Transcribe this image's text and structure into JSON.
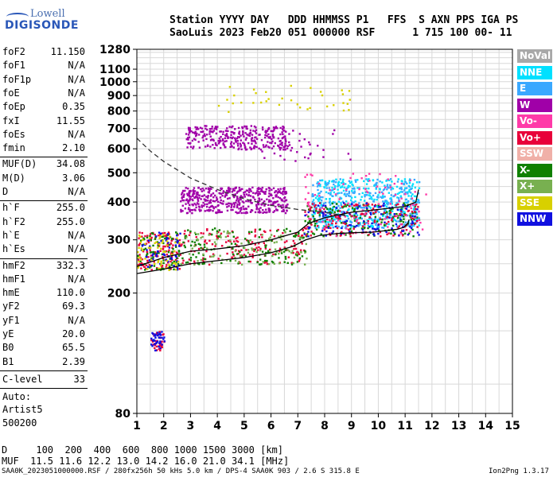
{
  "logo": {
    "line1": "Lowell",
    "line2": "DIGISONDE"
  },
  "header": {
    "row1": "Station YYYY DAY   DDD HHMMSS P1   FFS  S AXN PPS IGA PS",
    "row2": "SaoLuis 2023 Feb20 051 000000 RSF      1 715 100 00- 11"
  },
  "params": [
    {
      "name": "foF2",
      "value": "11.150"
    },
    {
      "name": "foF1",
      "value": "N/A"
    },
    {
      "name": "foF1p",
      "value": "N/A"
    },
    {
      "name": "foE",
      "value": "N/A"
    },
    {
      "name": "foEp",
      "value": "0.35"
    },
    {
      "name": "fxI",
      "value": "11.55"
    },
    {
      "name": "foEs",
      "value": "N/A"
    },
    {
      "name": "fmin",
      "value": "2.10"
    },
    {
      "name": "MUF(D)",
      "value": "34.08"
    },
    {
      "name": "M(D)",
      "value": "3.06"
    },
    {
      "name": "D",
      "value": "N/A"
    },
    {
      "name": "h`F",
      "value": "255.0"
    },
    {
      "name": "h`F2",
      "value": "255.0"
    },
    {
      "name": "h`E",
      "value": "N/A"
    },
    {
      "name": "h`Es",
      "value": "N/A"
    },
    {
      "name": "hmF2",
      "value": "332.3"
    },
    {
      "name": "hmF1",
      "value": "N/A"
    },
    {
      "name": "hmE",
      "value": "110.0"
    },
    {
      "name": "yF2",
      "value": "69.3"
    },
    {
      "name": "yF1",
      "value": "N/A"
    },
    {
      "name": "yE",
      "value": "20.0"
    },
    {
      "name": "B0",
      "value": "65.5"
    },
    {
      "name": "B1",
      "value": "2.39"
    }
  ],
  "c_level": {
    "name": "C-level",
    "value": "33"
  },
  "auto": {
    "line1": "Auto:",
    "line2": "Artist5",
    "line3": "500200"
  },
  "legend": [
    {
      "label": "NoVal",
      "color": "#a8a8a8"
    },
    {
      "label": "NNE",
      "color": "#00e0ff"
    },
    {
      "label": "E",
      "color": "#3aa8ff"
    },
    {
      "label": "W",
      "color": "#a000a8"
    },
    {
      "label": "Vo-",
      "color": "#ff3aa8"
    },
    {
      "label": "Vo+",
      "color": "#e8003a"
    },
    {
      "label": "SSW",
      "color": "#f0b0a8"
    },
    {
      "label": "X-",
      "color": "#108000"
    },
    {
      "label": "X+",
      "color": "#78b050"
    },
    {
      "label": "SSE",
      "color": "#d8d000"
    },
    {
      "label": "NNW",
      "color": "#1010e0"
    }
  ],
  "bottom": {
    "row1": "D     100  200  400  600  800 1000 1500 3000 [km]",
    "row2": "MUF  11.5 11.6 12.2 13.0 14.2 16.0 21.0 34.1 [MHz]"
  },
  "footer": {
    "left": "SAA0K_2023051000000.RSF / 280fx256h 50 kHs 5.0 km / DPS-4 SAA0K 903 / 2.6 S 315.8 E",
    "right": "Ion2Png 1.3.17"
  },
  "chart_data": {
    "type": "scatter",
    "title": "",
    "xlabel": "",
    "ylabel": "",
    "xlim": [
      1,
      15
    ],
    "ylim": [
      80,
      1280
    ],
    "y_scale": "log",
    "x_ticks": [
      1,
      2,
      3,
      4,
      5,
      6,
      7,
      8,
      9,
      10,
      11,
      12,
      13,
      14,
      15
    ],
    "y_ticks": [
      80,
      200,
      300,
      400,
      500,
      600,
      700,
      800,
      900,
      1000,
      1100,
      1280
    ],
    "grid": true,
    "clusters": [
      {
        "name": "Vo+",
        "color": "#e8003a",
        "x": [
          1.5,
          2.0
        ],
        "y": [
          130,
          150
        ],
        "n": 40
      },
      {
        "name": "NNW",
        "color": "#1010e0",
        "x": [
          1.5,
          2.0
        ],
        "y": [
          130,
          150
        ],
        "n": 40
      },
      {
        "name": "Vo+",
        "color": "#e8003a",
        "x": [
          1.0,
          2.6
        ],
        "y": [
          240,
          320
        ],
        "n": 120
      },
      {
        "name": "X-",
        "color": "#108000",
        "x": [
          1.0,
          2.6
        ],
        "y": [
          240,
          320
        ],
        "n": 80
      },
      {
        "name": "NNW",
        "color": "#1010e0",
        "x": [
          1.0,
          2.6
        ],
        "y": [
          240,
          320
        ],
        "n": 60
      },
      {
        "name": "SSE",
        "color": "#d8d000",
        "x": [
          1.0,
          2.6
        ],
        "y": [
          240,
          320
        ],
        "n": 60
      },
      {
        "name": "Vo+",
        "color": "#e8003a",
        "x": [
          2.6,
          7.3
        ],
        "y": [
          250,
          330
        ],
        "n": 160
      },
      {
        "name": "X-",
        "color": "#108000",
        "x": [
          2.6,
          7.3
        ],
        "y": [
          250,
          330
        ],
        "n": 120
      },
      {
        "name": "X+",
        "color": "#78b050",
        "x": [
          2.6,
          7.3
        ],
        "y": [
          250,
          330
        ],
        "n": 100
      },
      {
        "name": "W",
        "color": "#a000a8",
        "x": [
          2.6,
          6.6
        ],
        "y": [
          370,
          450
        ],
        "n": 450
      },
      {
        "name": "W",
        "color": "#a000a8",
        "x": [
          2.8,
          6.6
        ],
        "y": [
          600,
          720
        ],
        "n": 300
      },
      {
        "name": "NNE",
        "color": "#00e0ff",
        "x": [
          7.5,
          11.5
        ],
        "y": [
          330,
          480
        ],
        "n": 350
      },
      {
        "name": "E",
        "color": "#3aa8ff",
        "x": [
          7.5,
          11.5
        ],
        "y": [
          330,
          480
        ],
        "n": 300
      },
      {
        "name": "X-",
        "color": "#108000",
        "x": [
          7.2,
          11.5
        ],
        "y": [
          310,
          400
        ],
        "n": 160
      },
      {
        "name": "Vo+",
        "color": "#e8003a",
        "x": [
          7.2,
          11.5
        ],
        "y": [
          310,
          400
        ],
        "n": 150
      },
      {
        "name": "Vo-",
        "color": "#ff3aa8",
        "x": [
          7.2,
          11.8
        ],
        "y": [
          310,
          500
        ],
        "n": 100
      },
      {
        "name": "NNW",
        "color": "#1010e0",
        "x": [
          7.2,
          11.5
        ],
        "y": [
          310,
          400
        ],
        "n": 100
      },
      {
        "name": "SSE",
        "color": "#d8d000",
        "x": [
          4.0,
          9.0
        ],
        "y": [
          800,
          980
        ],
        "n": 35
      },
      {
        "name": "W",
        "color": "#a000a8",
        "x": [
          5.5,
          9.0
        ],
        "y": [
          550,
          700
        ],
        "n": 40
      }
    ],
    "f2_trace": {
      "x": [
        1.0,
        2,
        3,
        4,
        5,
        6,
        6.8,
        7.3,
        7.8,
        8.5,
        9.2,
        9.8,
        10.3,
        10.7,
        10.95,
        11.1,
        11.15
      ],
      "y": [
        232,
        240,
        250,
        256,
        262,
        272,
        285,
        300,
        310,
        315,
        317,
        318,
        322,
        325,
        330,
        340,
        350
      ]
    },
    "profile_curve": {
      "x": [
        1.0,
        2,
        3,
        4,
        5,
        6,
        7,
        7.4,
        8,
        9,
        10,
        11,
        11.4,
        11.5
      ],
      "y": [
        245,
        262,
        275,
        280,
        287,
        300,
        318,
        340,
        355,
        370,
        378,
        387,
        400,
        440
      ]
    },
    "muf_dashed": {
      "x": [
        1.0,
        1.5,
        2,
        3,
        4,
        5,
        6,
        7,
        8,
        8.8
      ],
      "y": [
        650,
        590,
        545,
        480,
        440,
        410,
        390,
        378,
        370,
        360
      ]
    }
  }
}
